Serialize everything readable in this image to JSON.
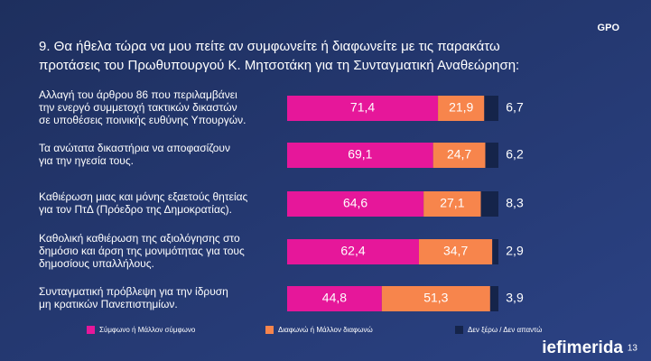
{
  "chart_data": {
    "type": "stacked-bar-horizontal",
    "title": [
      "9. Θα ήθελα τώρα να μου πείτε αν συμφωνείτε ή διαφωνείτε με τις παρακάτω",
      "προτάσεις του Πρωθυπουργού Κ. Μητσοτάκη για τη Συνταγματική Αναθεώρηση:"
    ],
    "categories": [
      [
        "Αλλαγή του άρθρου 86 που περιλαμβάνει",
        "την ενεργό συμμετοχή τακτικών δικαστών",
        "σε υποθέσεις ποινικής ευθύνης Υπουργών."
      ],
      [
        "Τα ανώτατα δικαστήρια να αποφασίζουν",
        "για την ηγεσία τους."
      ],
      [
        "Καθιέρωση μιας και μόνης εξαετούς θητείας",
        "για τον ΠτΔ (Πρόεδρο της Δημοκρατίας)."
      ],
      [
        "Καθολική καθιέρωση της αξιολόγησης στο",
        "δημόσιο και άρση της μονιμότητας για τους",
        "δημοσίους υπαλλήλους."
      ],
      [
        "Συνταγματική πρόβλεψη για την ίδρυση",
        "μη κρατικών Πανεπιστημίων."
      ]
    ],
    "series": [
      {
        "name": "Σύμφωνο ή Μάλλον σύμφωνο",
        "color": "#e6179a",
        "values": [
          71.4,
          69.1,
          64.6,
          62.4,
          44.8
        ],
        "value_labels": [
          "71,4",
          "69,1",
          "64,6",
          "62,4",
          "44,8"
        ]
      },
      {
        "name": "Διαφωνώ ή Μάλλον διαφωνώ",
        "color": "#f7854c",
        "values": [
          21.9,
          24.7,
          27.1,
          34.7,
          51.3
        ],
        "value_labels": [
          "21,9",
          "24,7",
          "27,1",
          "34,7",
          "51,3"
        ]
      },
      {
        "name": "Δεν ξέρω / Δεν απαντώ",
        "color": "#15244a",
        "values": [
          6.7,
          6.2,
          8.3,
          2.9,
          3.9
        ],
        "value_labels": [
          "6,7",
          "6,2",
          "8,3",
          "2,9",
          "3,9"
        ]
      }
    ],
    "logo": "GPO",
    "brand": "iefimerida",
    "page": "13"
  }
}
